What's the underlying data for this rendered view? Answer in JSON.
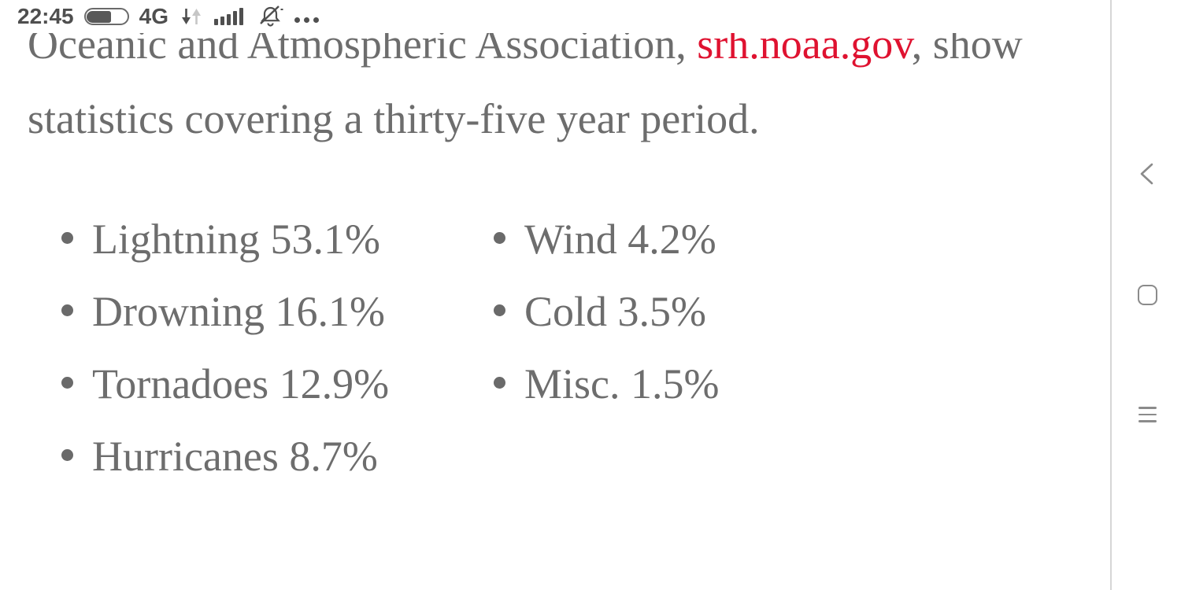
{
  "status_bar": {
    "time": "22:45",
    "network_type": "4G",
    "battery_fill_ratio": 0.58,
    "icons": {
      "battery": "battery-icon",
      "data_arrows": "data-up-down-arrows-icon",
      "signal": "signal-strength-icon",
      "mute": "mute-bell-icon",
      "more": "more-dots-icon"
    }
  },
  "article": {
    "paragraph": {
      "text_before_link": "Oceanic and Atmospheric Association, ",
      "link_text": "srh.noaa.gov",
      "text_after_link": ", show",
      "text_line2": "statistics covering a thirty-five year period."
    },
    "stats_list": {
      "column1": [
        "Lightning 53.1%",
        "Drowning 16.1%",
        "Tornadoes 12.9%",
        "Hurricanes 8.7%"
      ],
      "column2": [
        "Wind 4.2%",
        "Cold 3.5%",
        "Misc. 1.5%"
      ]
    }
  },
  "nav_bar": {
    "icons": [
      "back-chevron-icon",
      "home-square-icon",
      "recents-menu-icon"
    ]
  },
  "colors": {
    "body_text": "#6d6d6d",
    "link_red": "#df1230",
    "status_bar_gray": "#4f4f4f",
    "nav_icon_gray": "#8b8b8b",
    "divider": "#d6d6d6",
    "background": "#ffffff"
  }
}
